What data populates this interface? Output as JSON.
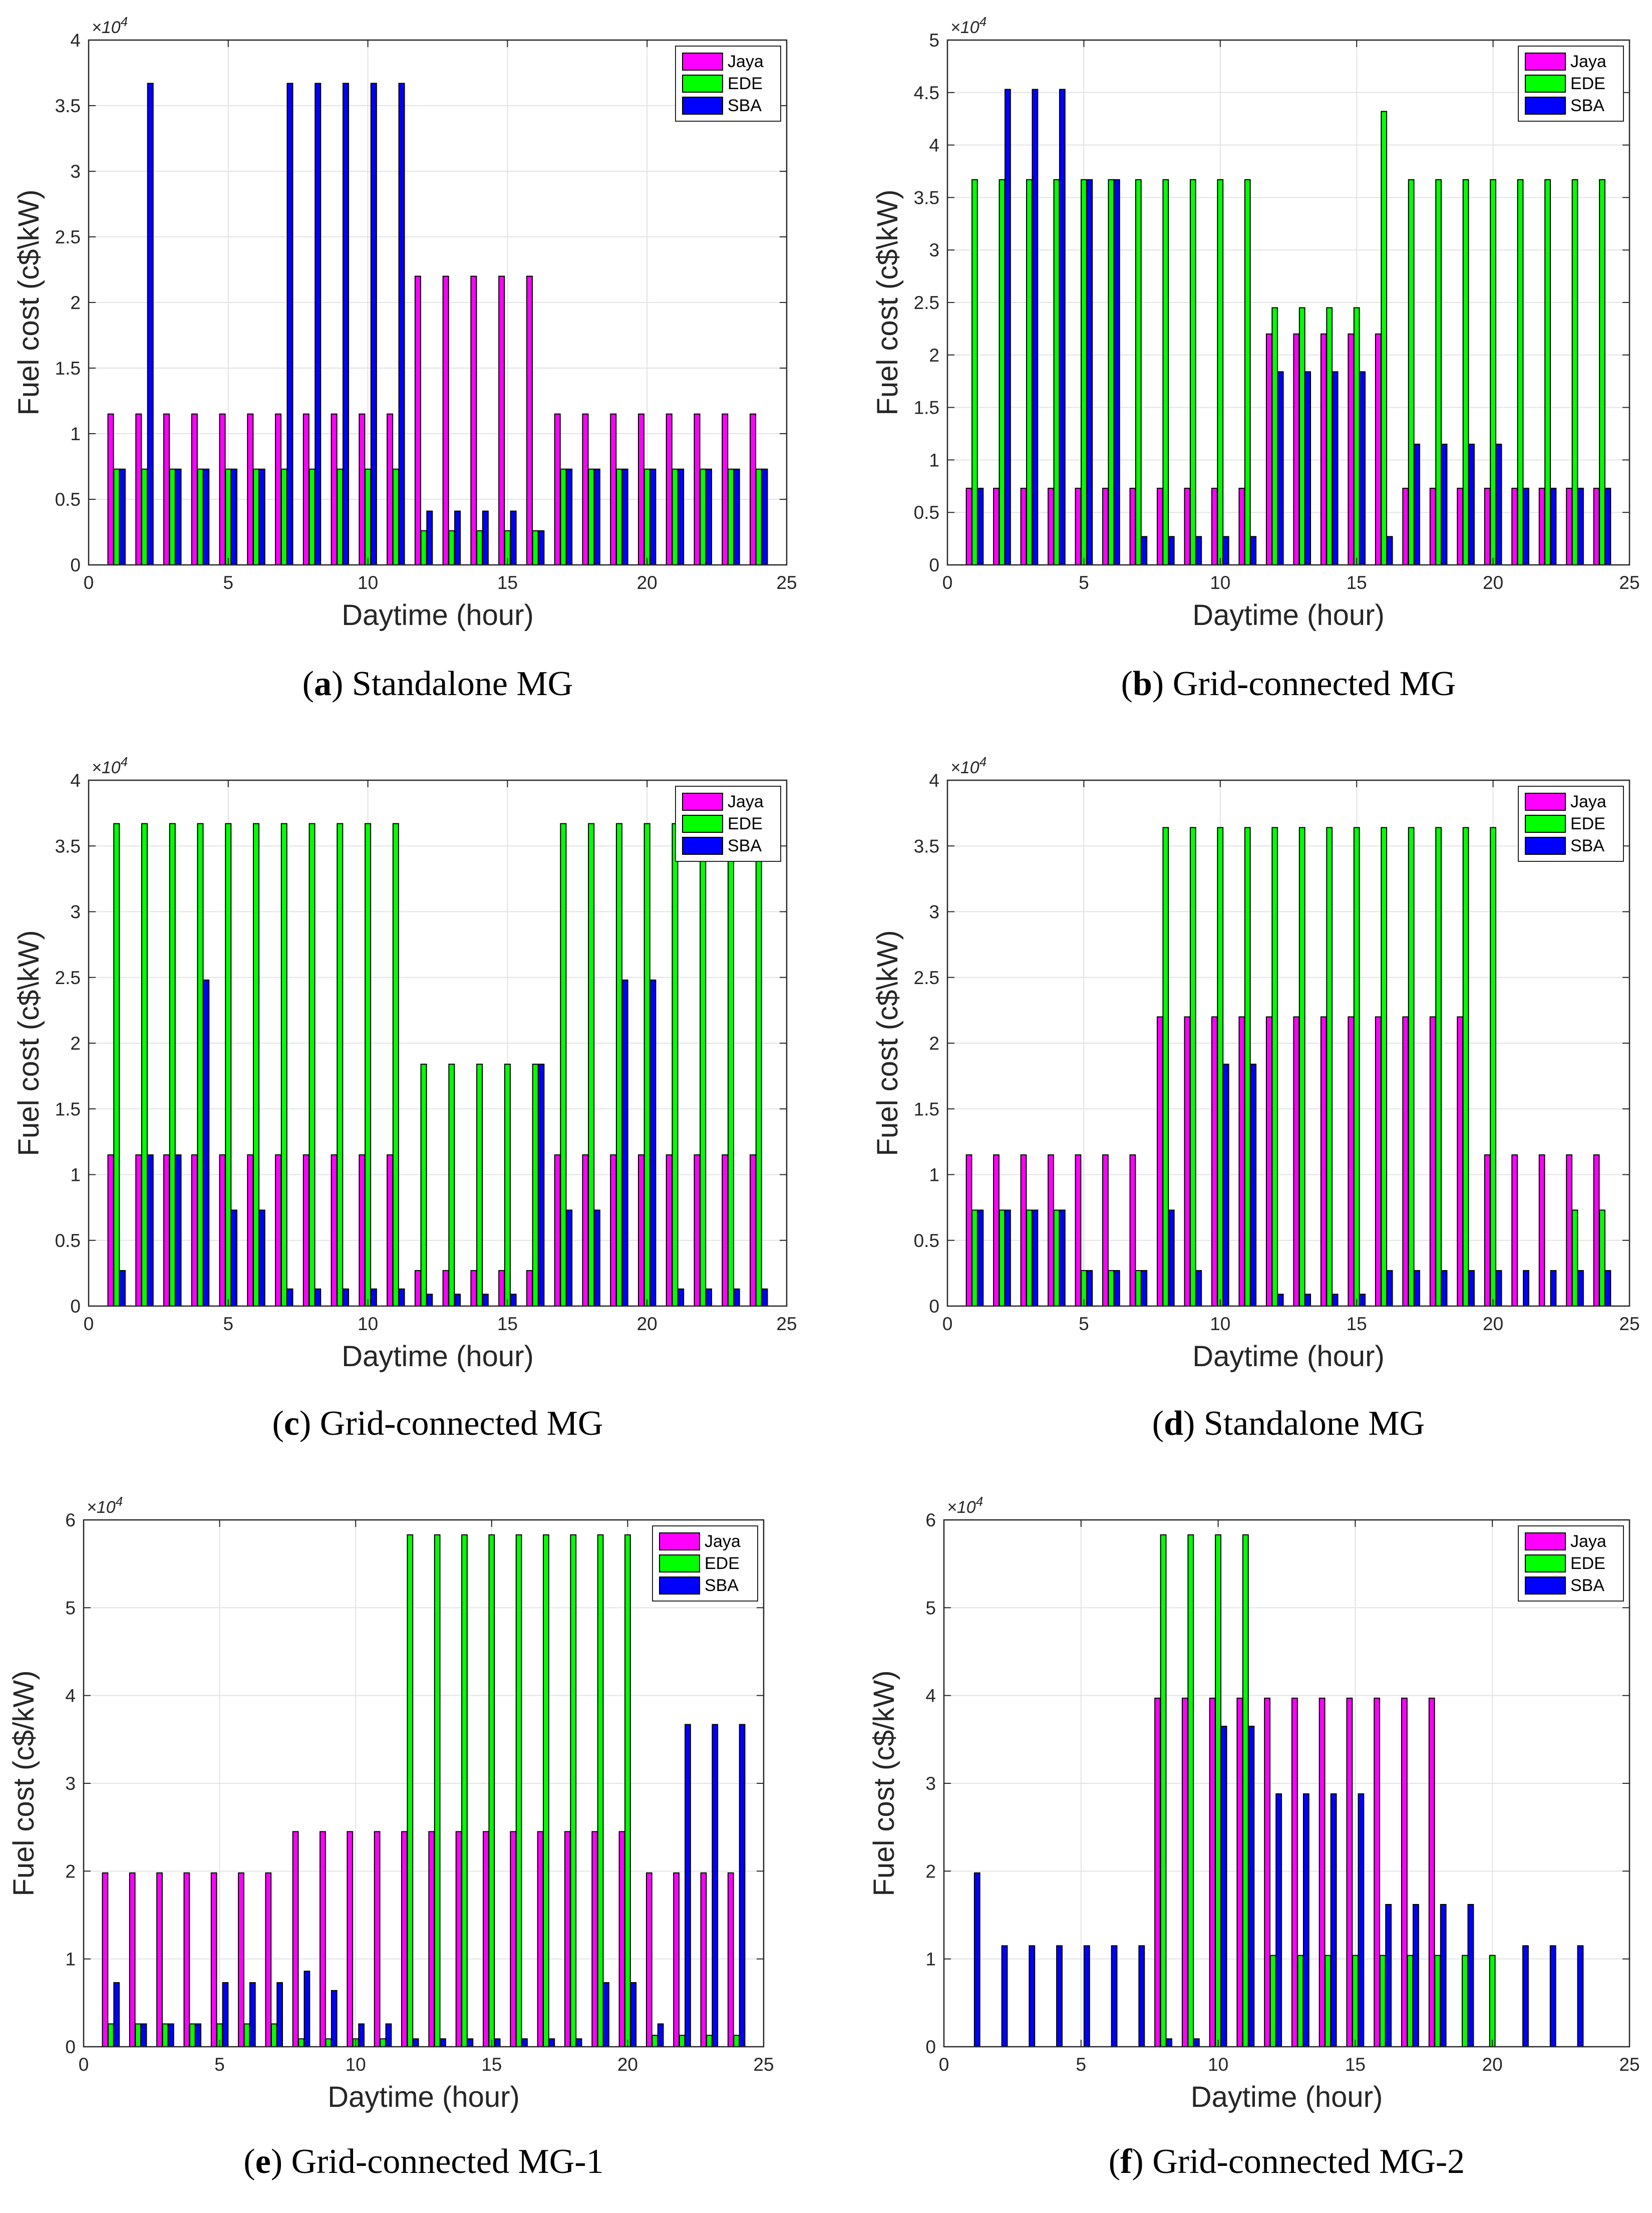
{
  "common": {
    "xlabel": "Daytime (hour)",
    "ylabel": "Fuel cost (c$\\kW)",
    "exponent_base": "×10",
    "exponent_power": "4",
    "xticks": [
      0,
      5,
      10,
      15,
      20,
      25
    ],
    "legend": [
      "Jaya",
      "EDE",
      "SBA"
    ],
    "colors": {
      "Jaya": "#ff00ff",
      "EDE": "#00ff00",
      "SBA": "#0000ff"
    }
  },
  "chart_data": [
    {
      "type": "bar",
      "panel_letter": "a",
      "title": "Standalone MG",
      "xlabel": "Daytime (hour)",
      "ylabel": "Fuel cost (c$\\kW)",
      "xlim": [
        0,
        25
      ],
      "ylim": [
        0,
        4
      ],
      "yticks": [
        "0",
        "0.5",
        "1",
        "1.5",
        "2",
        "2.5",
        "3",
        "3.5",
        "4"
      ],
      "ymultiplier": "×10^4",
      "legend_position": "top-right",
      "categories": [
        1,
        2,
        3,
        4,
        5,
        6,
        7,
        8,
        9,
        10,
        11,
        12,
        13,
        14,
        15,
        16,
        17,
        18,
        19,
        20,
        21,
        22,
        23,
        24
      ],
      "series": [
        {
          "name": "Jaya",
          "values": [
            1.15,
            1.15,
            1.15,
            1.15,
            1.15,
            1.15,
            1.15,
            1.15,
            1.15,
            1.15,
            1.15,
            2.2,
            2.2,
            2.2,
            2.2,
            2.2,
            1.15,
            1.15,
            1.15,
            1.15,
            1.15,
            1.15,
            1.15,
            1.15
          ]
        },
        {
          "name": "EDE",
          "values": [
            0.73,
            0.73,
            0.73,
            0.73,
            0.73,
            0.73,
            0.73,
            0.73,
            0.73,
            0.73,
            0.73,
            0.26,
            0.26,
            0.26,
            0.26,
            0.26,
            0.73,
            0.73,
            0.73,
            0.73,
            0.73,
            0.73,
            0.73,
            0.73
          ]
        },
        {
          "name": "SBA",
          "values": [
            0.73,
            3.67,
            0.73,
            0.73,
            0.73,
            0.73,
            3.67,
            3.67,
            3.67,
            3.67,
            3.67,
            0.41,
            0.41,
            0.41,
            0.41,
            0.26,
            0.73,
            0.73,
            0.73,
            0.73,
            0.73,
            0.73,
            0.73,
            0.73
          ]
        }
      ]
    },
    {
      "type": "bar",
      "panel_letter": "b",
      "title": "Grid-connected MG",
      "xlabel": "Daytime (hour)",
      "ylabel": "Fuel cost (c$\\kW)",
      "xlim": [
        0,
        25
      ],
      "ylim": [
        0,
        5
      ],
      "yticks": [
        "0",
        "0.5",
        "1",
        "1.5",
        "2",
        "2.5",
        "3",
        "3.5",
        "4",
        "4.5",
        "5"
      ],
      "ymultiplier": "×10^4",
      "legend_position": "top-right",
      "categories": [
        1,
        2,
        3,
        4,
        5,
        6,
        7,
        8,
        9,
        10,
        11,
        12,
        13,
        14,
        15,
        16,
        17,
        18,
        19,
        20,
        21,
        22,
        23,
        24
      ],
      "series": [
        {
          "name": "Jaya",
          "values": [
            0.73,
            0.73,
            0.73,
            0.73,
            0.73,
            0.73,
            0.73,
            0.73,
            0.73,
            0.73,
            0.73,
            2.2,
            2.2,
            2.2,
            2.2,
            2.2,
            0.73,
            0.73,
            0.73,
            0.73,
            0.73,
            0.73,
            0.73,
            0.73
          ]
        },
        {
          "name": "EDE",
          "values": [
            3.67,
            3.67,
            3.67,
            3.67,
            3.67,
            3.67,
            3.67,
            3.67,
            3.67,
            3.67,
            3.67,
            2.45,
            2.45,
            2.45,
            2.45,
            4.32,
            3.67,
            3.67,
            3.67,
            3.67,
            3.67,
            3.67,
            3.67,
            3.67
          ]
        },
        {
          "name": "SBA",
          "values": [
            0.73,
            4.53,
            4.53,
            4.53,
            3.67,
            3.67,
            0.27,
            0.27,
            0.27,
            0.27,
            0.27,
            1.84,
            1.84,
            1.84,
            1.84,
            0.27,
            1.15,
            1.15,
            1.15,
            1.15,
            0.73,
            0.73,
            0.73,
            0.73
          ]
        }
      ]
    },
    {
      "type": "bar",
      "panel_letter": "c",
      "title": "Grid-connected MG",
      "xlabel": "Daytime (hour)",
      "ylabel": "Fuel cost (c$\\kW)",
      "xlim": [
        0,
        25
      ],
      "ylim": [
        0,
        4
      ],
      "yticks": [
        "0",
        "0.5",
        "1",
        "1.5",
        "2",
        "2.5",
        "3",
        "3.5",
        "4"
      ],
      "ymultiplier": "×10^4",
      "legend_position": "top-right",
      "categories": [
        1,
        2,
        3,
        4,
        5,
        6,
        7,
        8,
        9,
        10,
        11,
        12,
        13,
        14,
        15,
        16,
        17,
        18,
        19,
        20,
        21,
        22,
        23,
        24
      ],
      "series": [
        {
          "name": "Jaya",
          "values": [
            1.15,
            1.15,
            1.15,
            1.15,
            1.15,
            1.15,
            1.15,
            1.15,
            1.15,
            1.15,
            1.15,
            0.27,
            0.27,
            0.27,
            0.27,
            0.27,
            1.15,
            1.15,
            1.15,
            1.15,
            1.15,
            1.15,
            1.15,
            1.15
          ]
        },
        {
          "name": "EDE",
          "values": [
            3.67,
            3.67,
            3.67,
            3.67,
            3.67,
            3.67,
            3.67,
            3.67,
            3.67,
            3.67,
            3.67,
            1.84,
            1.84,
            1.84,
            1.84,
            1.84,
            3.67,
            3.67,
            3.67,
            3.67,
            3.67,
            3.67,
            3.67,
            3.67
          ]
        },
        {
          "name": "SBA",
          "values": [
            0.27,
            1.15,
            1.15,
            2.48,
            0.73,
            0.73,
            0.13,
            0.13,
            0.13,
            0.13,
            0.13,
            0.09,
            0.09,
            0.09,
            0.09,
            1.84,
            0.73,
            0.73,
            2.48,
            2.48,
            0.13,
            0.13,
            0.13,
            0.13
          ]
        }
      ]
    },
    {
      "type": "bar",
      "panel_letter": "d",
      "title": "Standalone MG",
      "xlabel": "Daytime (hour)",
      "ylabel": "Fuel cost (c$\\kW)",
      "xlim": [
        0,
        25
      ],
      "ylim": [
        0,
        4
      ],
      "yticks": [
        "0",
        "0.5",
        "1",
        "1.5",
        "2",
        "2.5",
        "3",
        "3.5",
        "4"
      ],
      "ymultiplier": "×10^4",
      "legend_position": "top-right",
      "categories": [
        1,
        2,
        3,
        4,
        5,
        6,
        7,
        8,
        9,
        10,
        11,
        12,
        13,
        14,
        15,
        16,
        17,
        18,
        19,
        20,
        21,
        22,
        23,
        24
      ],
      "series": [
        {
          "name": "Jaya",
          "values": [
            1.15,
            1.15,
            1.15,
            1.15,
            1.15,
            1.15,
            1.15,
            2.2,
            2.2,
            2.2,
            2.2,
            2.2,
            2.2,
            2.2,
            2.2,
            2.2,
            2.2,
            2.2,
            2.2,
            1.15,
            1.15,
            1.15,
            1.15,
            1.15
          ]
        },
        {
          "name": "EDE",
          "values": [
            0.73,
            0.73,
            0.73,
            0.73,
            0.27,
            0.27,
            0.27,
            3.64,
            3.64,
            3.64,
            3.64,
            3.64,
            3.64,
            3.64,
            3.64,
            3.64,
            3.64,
            3.64,
            3.64,
            3.64,
            0,
            0,
            0.73,
            0.73
          ]
        },
        {
          "name": "SBA",
          "values": [
            0.73,
            0.73,
            0.73,
            0.73,
            0.27,
            0.27,
            0.27,
            0.73,
            0.27,
            1.84,
            1.84,
            0.09,
            0.09,
            0.09,
            0.09,
            0.27,
            0.27,
            0.27,
            0.27,
            0.27,
            0.27,
            0.27,
            0.27,
            0.27
          ]
        }
      ]
    },
    {
      "type": "bar",
      "panel_letter": "e",
      "title": "Grid-connected MG-1",
      "xlabel": "Daytime (hour)",
      "ylabel": "Fuel cost (c$/kW)",
      "xlim": [
        0,
        25
      ],
      "ylim": [
        0,
        6
      ],
      "yticks": [
        "0",
        "1",
        "2",
        "3",
        "4",
        "5",
        "6"
      ],
      "ymultiplier": "×10^4",
      "legend_position": "top-right",
      "categories": [
        1,
        2,
        3,
        4,
        5,
        6,
        7,
        8,
        9,
        10,
        11,
        12,
        13,
        14,
        15,
        16,
        17,
        18,
        19,
        20,
        21,
        22,
        23,
        24
      ],
      "series": [
        {
          "name": "Jaya",
          "values": [
            1.98,
            1.98,
            1.98,
            1.98,
            1.98,
            1.98,
            1.98,
            2.45,
            2.45,
            2.45,
            2.45,
            2.45,
            2.45,
            2.45,
            2.45,
            2.45,
            2.45,
            2.45,
            2.45,
            2.45,
            1.98,
            1.98,
            1.98,
            1.98
          ]
        },
        {
          "name": "EDE",
          "values": [
            0.26,
            0.26,
            0.26,
            0.26,
            0.26,
            0.26,
            0.26,
            0.09,
            0.09,
            0.09,
            0.09,
            5.83,
            5.83,
            5.83,
            5.83,
            5.83,
            5.83,
            5.83,
            5.83,
            5.83,
            0.13,
            0.13,
            0.13,
            0.13
          ]
        },
        {
          "name": "SBA",
          "values": [
            0.73,
            0.26,
            0.26,
            0.26,
            0.73,
            0.73,
            0.73,
            0.86,
            0.64,
            0.26,
            0.26,
            0.09,
            0.09,
            0.09,
            0.09,
            0.09,
            0.09,
            0.09,
            0.73,
            0.73,
            0.26,
            3.67,
            3.67,
            3.67
          ]
        }
      ]
    },
    {
      "type": "bar",
      "panel_letter": "f",
      "title": "Grid-connected MG-2",
      "xlabel": "Daytime (hour)",
      "ylabel": "Fuel cost (c$/kW)",
      "xlim": [
        0,
        25
      ],
      "ylim": [
        0,
        6
      ],
      "yticks": [
        "0",
        "1",
        "2",
        "3",
        "4",
        "5",
        "6"
      ],
      "ymultiplier": "×10^4",
      "legend_position": "top-right",
      "categories": [
        1,
        2,
        3,
        4,
        5,
        6,
        7,
        8,
        9,
        10,
        11,
        12,
        13,
        14,
        15,
        16,
        17,
        18,
        19,
        20,
        21,
        22,
        23,
        24
      ],
      "series": [
        {
          "name": "Jaya",
          "values": [
            0,
            0,
            0,
            0,
            0,
            0,
            0,
            3.97,
            3.97,
            3.97,
            3.97,
            3.97,
            3.97,
            3.97,
            3.97,
            3.97,
            3.97,
            3.97,
            0,
            0,
            0,
            0,
            0,
            0
          ]
        },
        {
          "name": "EDE",
          "values": [
            0,
            0,
            0,
            0,
            0,
            0,
            0,
            5.83,
            5.83,
            5.83,
            5.83,
            1.04,
            1.04,
            1.04,
            1.04,
            1.04,
            1.04,
            1.04,
            1.04,
            1.04,
            0,
            0,
            0,
            0
          ]
        },
        {
          "name": "SBA",
          "values": [
            1.98,
            1.15,
            1.15,
            1.15,
            1.15,
            1.15,
            1.15,
            0.09,
            0.09,
            3.65,
            3.65,
            2.88,
            2.88,
            2.88,
            2.88,
            1.62,
            1.62,
            1.62,
            1.62,
            0,
            1.15,
            1.15,
            1.15,
            0
          ]
        }
      ]
    }
  ]
}
